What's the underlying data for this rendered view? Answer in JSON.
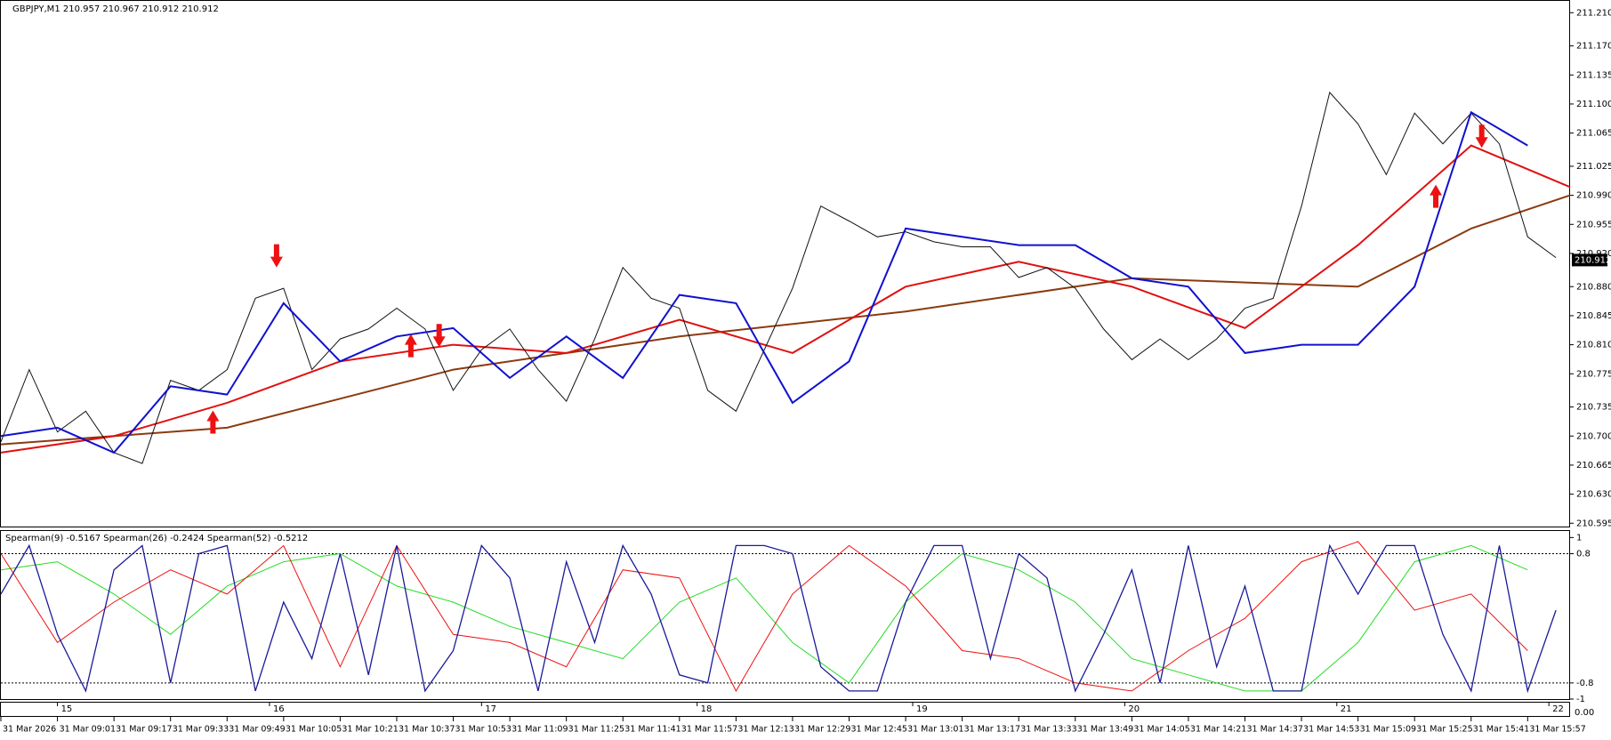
{
  "chart_data": [
    {
      "type": "line",
      "title": "GBPJPY,M1  210.957 210.967 210.912 210.912",
      "xlim": [
        0,
        444
      ],
      "ylim": [
        210.591,
        211.221
      ],
      "yticks": [
        {
          "value": 211.21,
          "label": "211.210"
        },
        {
          "value": 211.17,
          "label": "211.170"
        },
        211.135,
        {
          "value": 211.1,
          "label": "211.100"
        },
        211.065,
        211.025,
        {
          "value": 210.99,
          "label": "210.990"
        },
        210.955,
        {
          "value": 210.92,
          "label": "210.920"
        },
        {
          "value": 210.88,
          "label": "210.880"
        },
        210.845,
        {
          "value": 210.81,
          "label": "210.810"
        },
        210.775,
        210.735,
        {
          "value": 210.7,
          "label": "210.700"
        },
        210.665,
        {
          "value": 210.63,
          "label": "210.630"
        },
        210.595
      ],
      "last_price": 210.912,
      "series": [
        {
          "color": "#8b3a0f",
          "width": 2,
          "x": [
            0,
            64,
            128,
            192,
            256,
            320,
            384,
            416,
            444
          ],
          "values": [
            210.69,
            210.71,
            210.78,
            210.82,
            210.85,
            210.89,
            210.88,
            210.95,
            210.99
          ]
        },
        {
          "color": "#e01010",
          "width": 2,
          "x": [
            0,
            32,
            64,
            96,
            128,
            160,
            192,
            224,
            256,
            288,
            320,
            352,
            384,
            416,
            444
          ],
          "values": [
            210.68,
            210.7,
            210.74,
            210.79,
            210.81,
            210.8,
            210.84,
            210.8,
            210.88,
            210.91,
            210.88,
            210.83,
            210.93,
            211.05,
            211.0
          ]
        },
        {
          "color": "#111111",
          "width": 1,
          "x": [
            0,
            8,
            16,
            24,
            32,
            40,
            48,
            56,
            64,
            72,
            80,
            88,
            96,
            104,
            112,
            120,
            128,
            136,
            144,
            152,
            160,
            168,
            176,
            184,
            192,
            200,
            208,
            216,
            224,
            232,
            240,
            248,
            256,
            264,
            272,
            280,
            288,
            296,
            304,
            312,
            320,
            328,
            336,
            344,
            352,
            360,
            368,
            376,
            384,
            392,
            400,
            408,
            416,
            424,
            432,
            440
          ],
          "values": [
            210.693,
            210.78,
            210.705,
            210.73,
            210.68,
            210.667,
            210.767,
            210.755,
            210.78,
            210.866,
            210.878,
            210.78,
            210.817,
            210.829,
            210.854,
            210.829,
            210.755,
            210.804,
            210.829,
            210.78,
            210.742,
            210.817,
            210.903,
            210.866,
            210.854,
            210.755,
            210.73,
            210.804,
            210.878,
            210.977,
            210.959,
            210.94,
            210.946,
            210.934,
            210.928,
            210.928,
            210.891,
            210.903,
            210.878,
            210.829,
            210.792,
            210.817,
            210.792,
            210.817,
            210.854,
            210.866,
            210.977,
            211.114,
            211.076,
            211.015,
            211.089,
            211.052,
            211.089,
            211.052,
            210.94,
            210.915
          ]
        },
        {
          "color": "#1010d0",
          "width": 2,
          "x": [
            0,
            16,
            32,
            48,
            64,
            80,
            96,
            112,
            128,
            144,
            160,
            176,
            192,
            208,
            224,
            240,
            256,
            272,
            288,
            304,
            320,
            336,
            352,
            368,
            384,
            400,
            416,
            432
          ],
          "values": [
            210.7,
            210.71,
            210.68,
            210.76,
            210.75,
            210.86,
            210.79,
            210.82,
            210.83,
            210.77,
            210.82,
            210.77,
            210.87,
            210.86,
            210.74,
            210.79,
            210.95,
            210.94,
            210.93,
            210.93,
            210.89,
            210.88,
            210.8,
            210.81,
            210.81,
            210.88,
            211.09,
            211.05
          ]
        }
      ],
      "signals": [
        {
          "x": 60,
          "value": 210.718,
          "dir": "up"
        },
        {
          "x": 78,
          "value": 210.916,
          "dir": "down"
        },
        {
          "x": 116,
          "value": 210.81,
          "dir": "up"
        },
        {
          "x": 124,
          "value": 210.82,
          "dir": "down"
        },
        {
          "x": 406,
          "value": 210.99,
          "dir": "up"
        },
        {
          "x": 419,
          "value": 211.06,
          "dir": "down"
        }
      ],
      "signal_color": "#ee1111"
    },
    {
      "type": "line",
      "title": "Spearman(9) -0.5167  Spearman(26) -0.2424  Spearman(52) -0.5212",
      "xlim": [
        0,
        444
      ],
      "ylim": [
        -1.0,
        1.07
      ],
      "yticks": [
        1,
        0.8,
        -0.8,
        -1
      ],
      "grid_style": "dashed",
      "series": [
        {
          "color": "#22dd22",
          "width": 1,
          "x": [
            0,
            16,
            32,
            48,
            64,
            80,
            96,
            112,
            128,
            144,
            160,
            176,
            192,
            208,
            224,
            240,
            256,
            272,
            288,
            304,
            320,
            336,
            352,
            368,
            384,
            400,
            416,
            432
          ],
          "values": [
            0.6,
            0.7,
            0.3,
            -0.2,
            0.4,
            0.7,
            0.8,
            0.4,
            0.2,
            -0.1,
            -0.3,
            -0.5,
            0.2,
            0.5,
            -0.3,
            -0.8,
            0.2,
            0.8,
            0.6,
            0.2,
            -0.5,
            -0.7,
            -0.9,
            -0.9,
            -0.3,
            0.7,
            0.9,
            0.6
          ]
        },
        {
          "color": "#ee1111",
          "width": 1,
          "x": [
            0,
            16,
            32,
            48,
            64,
            80,
            96,
            112,
            128,
            144,
            160,
            176,
            192,
            208,
            224,
            240,
            256,
            272,
            288,
            304,
            320,
            336,
            352,
            368,
            384,
            400,
            416,
            432
          ],
          "values": [
            0.8,
            -0.3,
            0.2,
            0.6,
            0.3,
            0.9,
            -0.6,
            0.9,
            -0.2,
            -0.3,
            -0.6,
            0.6,
            0.5,
            -0.9,
            0.3,
            0.9,
            0.4,
            -0.4,
            -0.5,
            -0.8,
            -0.9,
            -0.4,
            0.0,
            0.7,
            0.95,
            0.1,
            0.3,
            -0.4
          ]
        },
        {
          "color": "#1a1a9a",
          "width": 1.3,
          "x": [
            0,
            8,
            16,
            24,
            32,
            40,
            48,
            56,
            64,
            72,
            80,
            88,
            96,
            104,
            112,
            120,
            128,
            136,
            144,
            152,
            160,
            168,
            176,
            184,
            192,
            200,
            208,
            216,
            224,
            232,
            240,
            248,
            256,
            264,
            272,
            280,
            288,
            296,
            304,
            312,
            320,
            328,
            336,
            344,
            352,
            360,
            368,
            376,
            384,
            392,
            400,
            408,
            416,
            424,
            432,
            440
          ],
          "values": [
            0.3,
            0.9,
            -0.2,
            -0.9,
            0.6,
            0.9,
            -0.8,
            0.8,
            0.9,
            -0.9,
            0.2,
            -0.5,
            0.8,
            -0.7,
            0.9,
            -0.9,
            -0.4,
            0.9,
            0.5,
            -0.9,
            0.7,
            -0.3,
            0.9,
            0.3,
            -0.7,
            -0.8,
            0.9,
            0.9,
            0.8,
            -0.6,
            -0.9,
            -0.9,
            0.2,
            0.9,
            0.9,
            -0.5,
            0.8,
            0.5,
            -0.9,
            -0.2,
            0.6,
            -0.8,
            0.9,
            -0.6,
            0.4,
            -0.9,
            -0.9,
            0.9,
            0.3,
            0.9,
            0.9,
            -0.2,
            -0.9,
            0.9,
            -0.9,
            0.1
          ]
        }
      ],
      "strip_label": "0.00",
      "day_labels": [
        {
          "value": 16,
          "label": "15"
        },
        {
          "value": 76,
          "label": "16"
        },
        {
          "value": 136,
          "label": "17"
        },
        {
          "value": 197,
          "label": "18"
        },
        {
          "value": 258,
          "label": "19"
        },
        {
          "value": 318,
          "label": "20"
        },
        {
          "value": 378,
          "label": "21"
        },
        {
          "value": 438,
          "label": "22"
        }
      ],
      "xticks": [
        {
          "value": 0,
          "label": "31 Mar 2026"
        },
        {
          "value": 16,
          "label": "31 Mar 09:01"
        },
        {
          "value": 32,
          "label": "31 Mar 09:17"
        },
        {
          "value": 48,
          "label": "31 Mar 09:33"
        },
        {
          "value": 64,
          "label": "31 Mar 09:49"
        },
        {
          "value": 80,
          "label": "31 Mar 10:05"
        },
        {
          "value": 96,
          "label": "31 Mar 10:21"
        },
        {
          "value": 112,
          "label": "31 Mar 10:37"
        },
        {
          "value": 128,
          "label": "31 Mar 10:53"
        },
        {
          "value": 144,
          "label": "31 Mar 11:09"
        },
        {
          "value": 160,
          "label": "31 Mar 11:25"
        },
        {
          "value": 176,
          "label": "31 Mar 11:41"
        },
        {
          "value": 192,
          "label": "31 Mar 11:57"
        },
        {
          "value": 208,
          "label": "31 Mar 12:13"
        },
        {
          "value": 224,
          "label": "31 Mar 12:29"
        },
        {
          "value": 240,
          "label": "31 Mar 12:45"
        },
        {
          "value": 256,
          "label": "31 Mar 13:01"
        },
        {
          "value": 272,
          "label": "31 Mar 13:17"
        },
        {
          "value": 288,
          "label": "31 Mar 13:33"
        },
        {
          "value": 304,
          "label": "31 Mar 13:49"
        },
        {
          "value": 320,
          "label": "31 Mar 14:05"
        },
        {
          "value": 336,
          "label": "31 Mar 14:21"
        },
        {
          "value": 352,
          "label": "31 Mar 14:37"
        },
        {
          "value": 368,
          "label": "31 Mar 14:53"
        },
        {
          "value": 384,
          "label": "31 Mar 15:09"
        },
        {
          "value": 400,
          "label": "31 Mar 15:25"
        },
        {
          "value": 416,
          "label": "31 Mar 15:41"
        },
        {
          "value": 432,
          "label": "31 Mar 15:57"
        }
      ]
    }
  ]
}
